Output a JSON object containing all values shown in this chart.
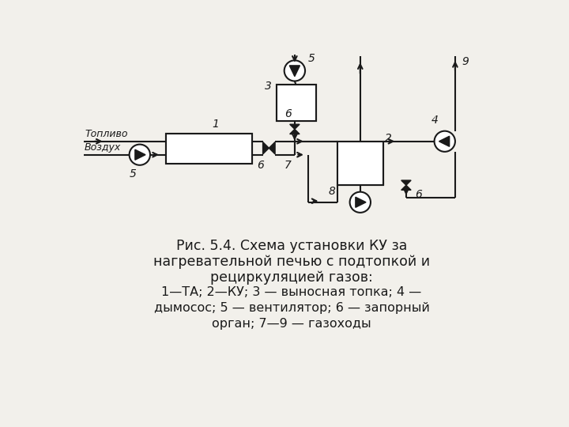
{
  "bg_color": "#f2f0eb",
  "line_color": "#1a1a1a",
  "caption": [
    "Рис. 5.4. Схема установки КУ за",
    "нагревательной печью с подтопкой и",
    "рециркуляцией газов:",
    "1—ТА; 2—КУ; 3 — выносная топка; 4 —",
    "дымосос; 5 — вентилятор; 6 — запорный",
    "орган; 7—9 — газоходы"
  ],
  "caption_italic_items": [
    "1",
    "2",
    "3",
    "4",
    "5",
    "6",
    "7",
    "9"
  ]
}
